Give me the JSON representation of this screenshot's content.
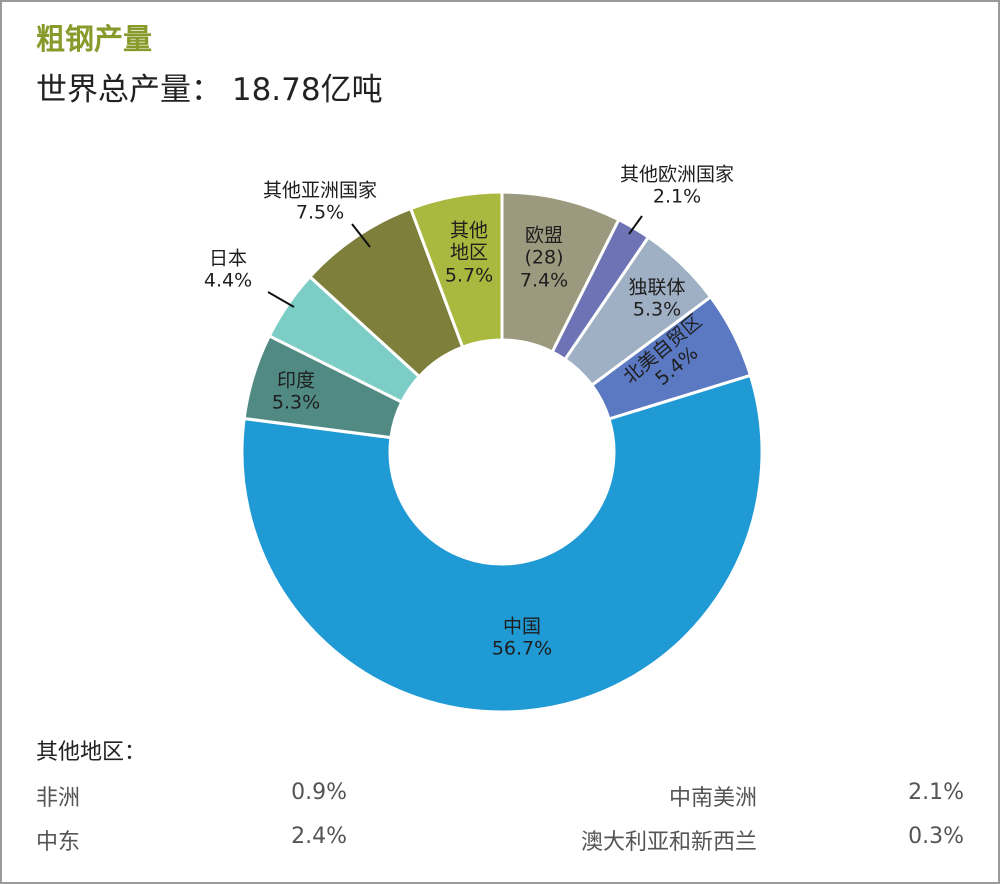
{
  "chart_data": {
    "type": "donut",
    "title": "粗钢产量",
    "subtitle": "世界总产量： 18.78亿吨",
    "categories": [
      "欧盟(28)",
      "其他欧洲国家",
      "独联体",
      "北美自贸区",
      "中国",
      "印度",
      "日本",
      "其他亚洲国家",
      "其他地区"
    ],
    "values": [
      7.4,
      2.1,
      5.3,
      5.4,
      56.7,
      5.3,
      4.4,
      7.5,
      5.7
    ],
    "value_labels": [
      "7.4%",
      "2.1%",
      "5.3%",
      "5.4%",
      "56.7%",
      "5.3%",
      "4.4%",
      "7.5%",
      "5.7%"
    ],
    "colors": [
      "#9b9a7e",
      "#6d73b5",
      "#9fb0c4",
      "#5b79c2",
      "#209ad4",
      "#508a83",
      "#7ccdc6",
      "#7d7f3a",
      "#a9b83e"
    ]
  },
  "other_regions": {
    "title": "其他地区：",
    "items": [
      {
        "name": "非洲",
        "value": "0.9%"
      },
      {
        "name": "中南美洲",
        "value": "2.1%"
      },
      {
        "name": "中东",
        "value": "2.4%"
      },
      {
        "name": "澳大利亚和新西兰",
        "value": "0.3%"
      }
    ]
  }
}
